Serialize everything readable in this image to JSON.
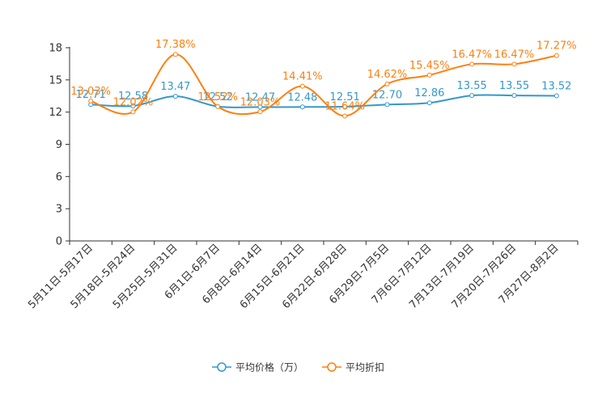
{
  "chart_data": {
    "type": "line",
    "title": "",
    "xlabel": "",
    "ylabel": "",
    "ylim": [
      0,
      18
    ],
    "yticks": [
      0,
      3,
      6,
      9,
      12,
      15,
      18
    ],
    "grid": false,
    "legend_position": "bottom",
    "categories": [
      "5月11日-5月17日",
      "5月18日-5月24日",
      "5月25日-5月31日",
      "6月1日-6月7日",
      "6月8日-6月14日",
      "6月15日-6月21日",
      "6月22日-6月28日",
      "6月29日-7月5日",
      "7月6日-7月12日",
      "7月13日-7月19日",
      "7月20日-7月26日",
      "7月27日-8月2日"
    ],
    "series": [
      {
        "name": "平均价格（万）",
        "color": "#3398cc",
        "values": [
          12.71,
          12.58,
          13.47,
          12.52,
          12.47,
          12.48,
          12.51,
          12.7,
          12.86,
          13.55,
          13.55,
          13.52
        ],
        "labels": [
          "12.71",
          "12.58",
          "13.47",
          "12.52",
          "12.47",
          "12.48",
          "12.51",
          "12.70",
          "12.86",
          "13.55",
          "13.55",
          "13.52"
        ]
      },
      {
        "name": "平均折扣",
        "color": "#ff7f0e",
        "values": [
          13.03,
          12.02,
          17.38,
          12.52,
          12.03,
          14.41,
          11.64,
          14.62,
          15.45,
          16.47,
          16.47,
          17.27
        ],
        "labels": [
          "13.03%",
          "12.02%",
          "17.38%",
          "12.52%",
          "12.03%",
          "14.41%",
          "11.64%",
          "14.62%",
          "15.45%",
          "16.47%",
          "16.47%",
          "17.27%"
        ]
      }
    ]
  }
}
